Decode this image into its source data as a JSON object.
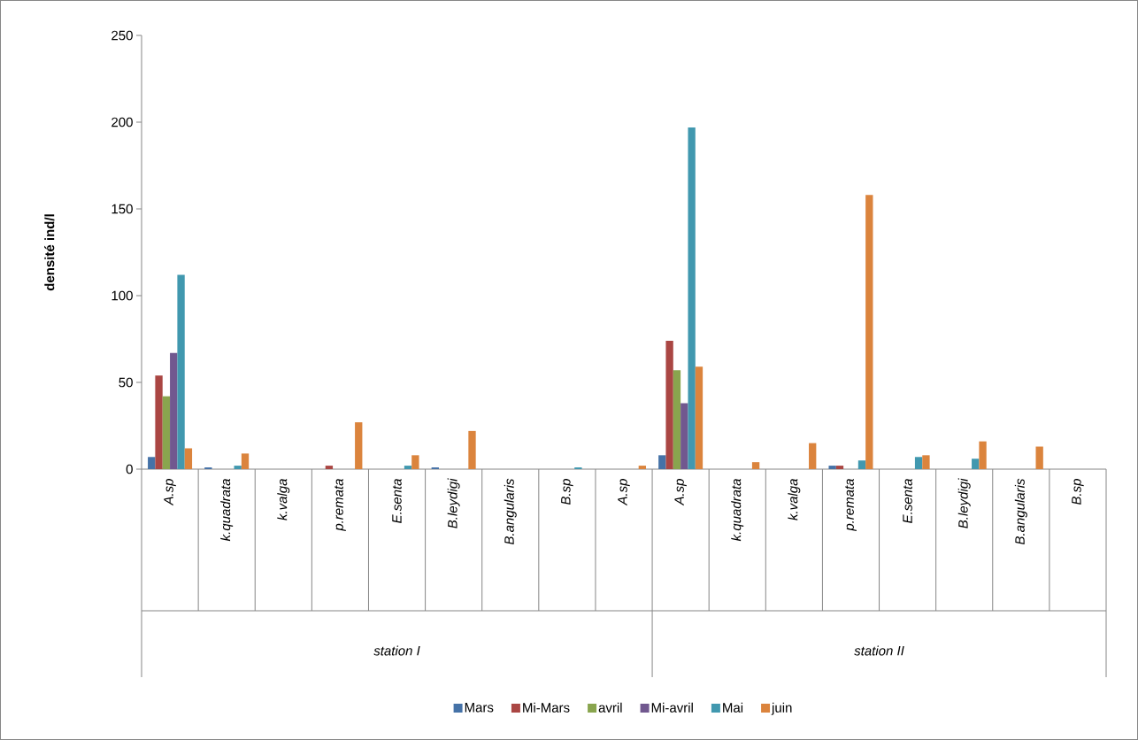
{
  "chart_data": {
    "type": "bar",
    "ylabel": "densité ind/l",
    "categories": [
      "A.sp",
      "k.quadrata",
      "k.valga",
      "p.remata",
      "E.senta",
      "B.leydigi",
      "B.angularis",
      "B.sp",
      "A.sp",
      "A.sp",
      "k.quadrata",
      "k.valga",
      "p.remata",
      "E.senta",
      "B.leydigi",
      "B.angularis",
      "B.sp"
    ],
    "series": [
      {
        "name": "Mars",
        "color": "#4572a7",
        "values": [
          7,
          1,
          0,
          0,
          0,
          1,
          0,
          0,
          0,
          8,
          0,
          0,
          2,
          0,
          0,
          0,
          0
        ]
      },
      {
        "name": "Mi-Mars",
        "color": "#aa4643",
        "values": [
          54,
          0,
          0,
          2,
          0,
          0,
          0,
          0,
          0,
          74,
          0,
          0,
          2,
          0,
          0,
          0,
          0
        ]
      },
      {
        "name": "avril",
        "color": "#89a54e",
        "values": [
          42,
          0,
          0,
          0,
          0,
          0,
          0,
          0,
          0,
          57,
          0,
          0,
          0,
          0,
          0,
          0,
          0
        ]
      },
      {
        "name": "Mi-avril",
        "color": "#71588f",
        "values": [
          67,
          0,
          0,
          0,
          0,
          0,
          0,
          0,
          0,
          38,
          0,
          0,
          0,
          0,
          0,
          0,
          0
        ]
      },
      {
        "name": "Mai",
        "color": "#4198af",
        "values": [
          112,
          2,
          0,
          0,
          2,
          0,
          0,
          1,
          0,
          197,
          0,
          0,
          5,
          7,
          6,
          0,
          0
        ]
      },
      {
        "name": "juin",
        "color": "#db843d",
        "values": [
          12,
          9,
          0,
          27,
          8,
          22,
          0,
          0,
          2,
          59,
          4,
          15,
          158,
          8,
          16,
          13,
          0
        ]
      }
    ],
    "ylim": [
      0,
      250
    ],
    "yticks": [
      0,
      50,
      100,
      150,
      200,
      250
    ],
    "legend": "bottom",
    "annotations": [
      "station I",
      "station II"
    ]
  }
}
